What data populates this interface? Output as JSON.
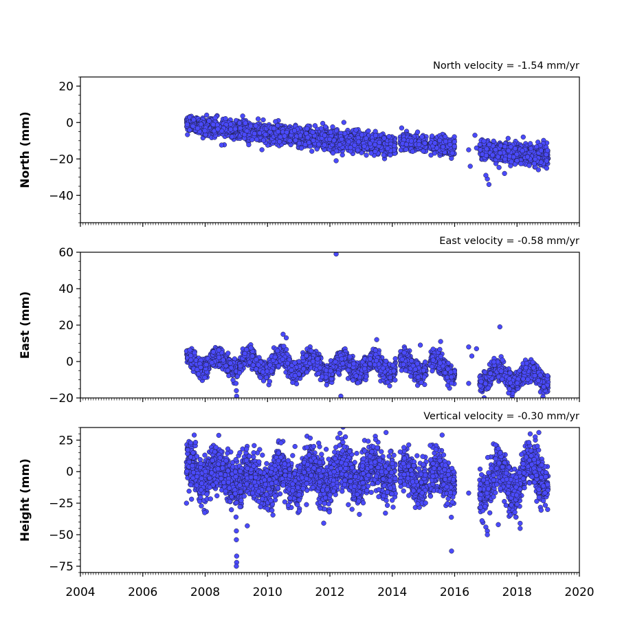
{
  "chart_data": [
    {
      "type": "scatter",
      "title": "North velocity = -1.54 mm/yr",
      "xlabel": "",
      "ylabel": "North (mm)",
      "xlim": [
        2004,
        2020
      ],
      "ylim": [
        -55,
        25
      ],
      "yticks": [
        20,
        0,
        -20,
        -40
      ],
      "ytick_labels": [
        "20",
        "0",
        "−20",
        "−40"
      ],
      "xtick_labels_visible": false,
      "marker_color": "#4a4afa",
      "series": [
        {
          "segments": [
            {
              "t0": 2007.4,
              "t1": 2009.1,
              "y0": -0.5,
              "y1": -4.5,
              "noise": 2.2
            },
            {
              "t0": 2009.1,
              "t1": 2011.2,
              "y0": -4.5,
              "y1": -8.0,
              "noise": 2.4
            },
            {
              "t0": 2011.2,
              "t1": 2014.1,
              "y0": -8.0,
              "y1": -12.0,
              "noise": 2.6
            },
            {
              "t0": 2014.25,
              "t1": 2015.1,
              "y0": -10.5,
              "y1": -12.0,
              "noise": 2.2
            },
            {
              "t0": 2015.2,
              "t1": 2016.0,
              "y0": -12.0,
              "y1": -13.5,
              "noise": 2.2
            },
            {
              "t0": 2016.8,
              "t1": 2019.0,
              "y0": -15.5,
              "y1": -18.5,
              "noise": 2.6
            }
          ],
          "outliers": [
            [
              2016.45,
              -15
            ],
            [
              2016.5,
              -24
            ],
            [
              2016.65,
              -7
            ],
            [
              2016.7,
              -14
            ],
            [
              2014.3,
              -3
            ],
            [
              2017.1,
              -34
            ],
            [
              2017.05,
              -31
            ],
            [
              2017.0,
              -29
            ],
            [
              2017.6,
              -28
            ],
            [
              2012.2,
              -21
            ]
          ]
        }
      ]
    },
    {
      "type": "scatter",
      "title": "East velocity = -0.58 mm/yr",
      "xlabel": "",
      "ylabel": "East (mm)",
      "xlim": [
        2004,
        2020
      ],
      "ylim": [
        -20,
        60
      ],
      "yticks": [
        60,
        40,
        20,
        0,
        -20
      ],
      "ytick_labels": [
        "60",
        "40",
        "20",
        "0",
        "−20"
      ],
      "xtick_labels_visible": false,
      "marker_color": "#4a4afa",
      "series": [
        {
          "segments": [
            {
              "t0": 2007.4,
              "t1": 2009.1,
              "y0": 0.0,
              "y1": -1.0,
              "noise": 2.4,
              "season": 3.5
            },
            {
              "t0": 2009.1,
              "t1": 2014.1,
              "y0": -1.0,
              "y1": -3.0,
              "noise": 2.6,
              "season": 4.0
            },
            {
              "t0": 2014.25,
              "t1": 2015.1,
              "y0": -2.0,
              "y1": -3.0,
              "noise": 2.4,
              "season": 4.0
            },
            {
              "t0": 2015.2,
              "t1": 2016.0,
              "y0": -2.0,
              "y1": -4.0,
              "noise": 2.4,
              "season": 4.0
            },
            {
              "t0": 2016.8,
              "t1": 2019.0,
              "y0": -8.0,
              "y1": -8.0,
              "noise": 2.6,
              "season": 4.0
            }
          ],
          "outliers": [
            [
              2012.2,
              59
            ],
            [
              2017.45,
              19
            ],
            [
              2010.5,
              15
            ],
            [
              2010.6,
              13
            ],
            [
              2013.5,
              12
            ],
            [
              2008.99,
              -12
            ],
            [
              2009.0,
              -16
            ],
            [
              2009.01,
              -19
            ],
            [
              2012.35,
              -19
            ],
            [
              2016.45,
              8
            ],
            [
              2016.55,
              3
            ],
            [
              2016.45,
              -12
            ],
            [
              2016.7,
              7
            ],
            [
              2014.9,
              9
            ],
            [
              2015.55,
              11
            ]
          ]
        }
      ]
    },
    {
      "type": "scatter",
      "title": "Vertical velocity = -0.30 mm/yr",
      "xlabel": "",
      "ylabel": "Height (mm)",
      "xlim": [
        2004,
        2020
      ],
      "ylim": [
        -80,
        35
      ],
      "yticks": [
        25,
        0,
        -25,
        -50,
        -75
      ],
      "ytick_labels": [
        "25",
        "0",
        "−25",
        "−50",
        "−75"
      ],
      "xticks": [
        2004,
        2006,
        2008,
        2010,
        2012,
        2014,
        2016,
        2018,
        2020
      ],
      "xtick_labels": [
        "2004",
        "2006",
        "2008",
        "2010",
        "2012",
        "2014",
        "2016",
        "2018",
        "2020"
      ],
      "xtick_labels_visible": true,
      "marker_color": "#4a4afa",
      "series": [
        {
          "segments": [
            {
              "t0": 2007.4,
              "t1": 2009.1,
              "y0": 2.0,
              "y1": -5.0,
              "noise": 9.0,
              "season": 8.0
            },
            {
              "t0": 2009.1,
              "t1": 2014.1,
              "y0": -8.0,
              "y1": 0.0,
              "noise": 9.0,
              "season": 9.0
            },
            {
              "t0": 2014.25,
              "t1": 2015.1,
              "y0": -5.0,
              "y1": -3.0,
              "noise": 8.0,
              "season": 8.0
            },
            {
              "t0": 2015.2,
              "t1": 2016.0,
              "y0": -5.0,
              "y1": -3.0,
              "noise": 8.0,
              "season": 8.0
            },
            {
              "t0": 2016.8,
              "t1": 2019.0,
              "y0": -10.0,
              "y1": 0.0,
              "noise": 9.0,
              "season": 10.0
            }
          ],
          "outliers": [
            [
              2008.99,
              -36
            ],
            [
              2009.0,
              -47
            ],
            [
              2009.0,
              -54
            ],
            [
              2009.01,
              -67
            ],
            [
              2009.01,
              -72
            ],
            [
              2009.0,
              -75
            ],
            [
              2009.35,
              -43
            ],
            [
              2015.9,
              -63
            ],
            [
              2016.45,
              -17
            ],
            [
              2017.0,
              -44
            ],
            [
              2017.05,
              -47
            ],
            [
              2017.05,
              -50
            ],
            [
              2017.4,
              -42
            ],
            [
              2018.1,
              -45
            ],
            [
              2018.1,
              -41
            ],
            [
              2007.4,
              -25
            ],
            [
              2018.7,
              31
            ],
            [
              2013.8,
              31
            ],
            [
              2015.6,
              29
            ],
            [
              2007.65,
              29
            ]
          ]
        }
      ]
    }
  ]
}
